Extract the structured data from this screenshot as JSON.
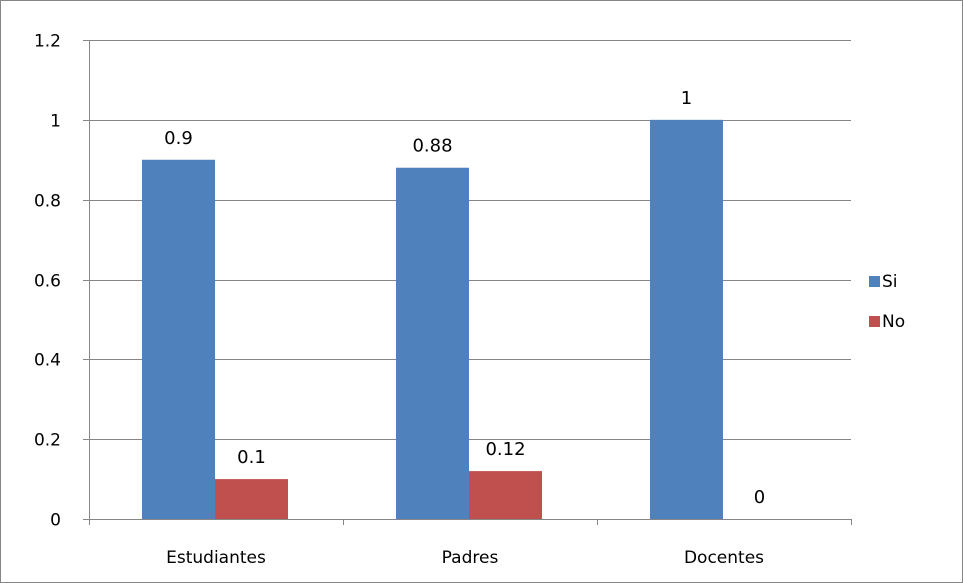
{
  "chart_data": {
    "type": "bar",
    "title": "",
    "xlabel": "",
    "ylabel": "",
    "categories": [
      "Estudiantes",
      "Padres",
      "Docentes"
    ],
    "series": [
      {
        "name": "Si",
        "values": [
          0.9,
          0.88,
          1
        ],
        "color": "#4F81BD"
      },
      {
        "name": "No",
        "values": [
          0.1,
          0.12,
          0
        ],
        "color": "#C0504D"
      }
    ],
    "data_labels": [
      [
        "0.9",
        "0.88",
        "1"
      ],
      [
        "0.1",
        "0.12",
        "0"
      ]
    ],
    "ylim": [
      0,
      1.2
    ],
    "yticks": [
      {
        "value": 0,
        "label": "0"
      },
      {
        "value": 0.2,
        "label": "0.2"
      },
      {
        "value": 0.4,
        "label": "0.4"
      },
      {
        "value": 0.6,
        "label": "0.6"
      },
      {
        "value": 0.8,
        "label": "0.8"
      },
      {
        "value": 1,
        "label": "1"
      },
      {
        "value": 1.2,
        "label": "1.2"
      }
    ],
    "grid": true,
    "legend_position": "right",
    "colors": {
      "gridline": "#868686",
      "axis": "#868686",
      "border": "#868686"
    }
  }
}
